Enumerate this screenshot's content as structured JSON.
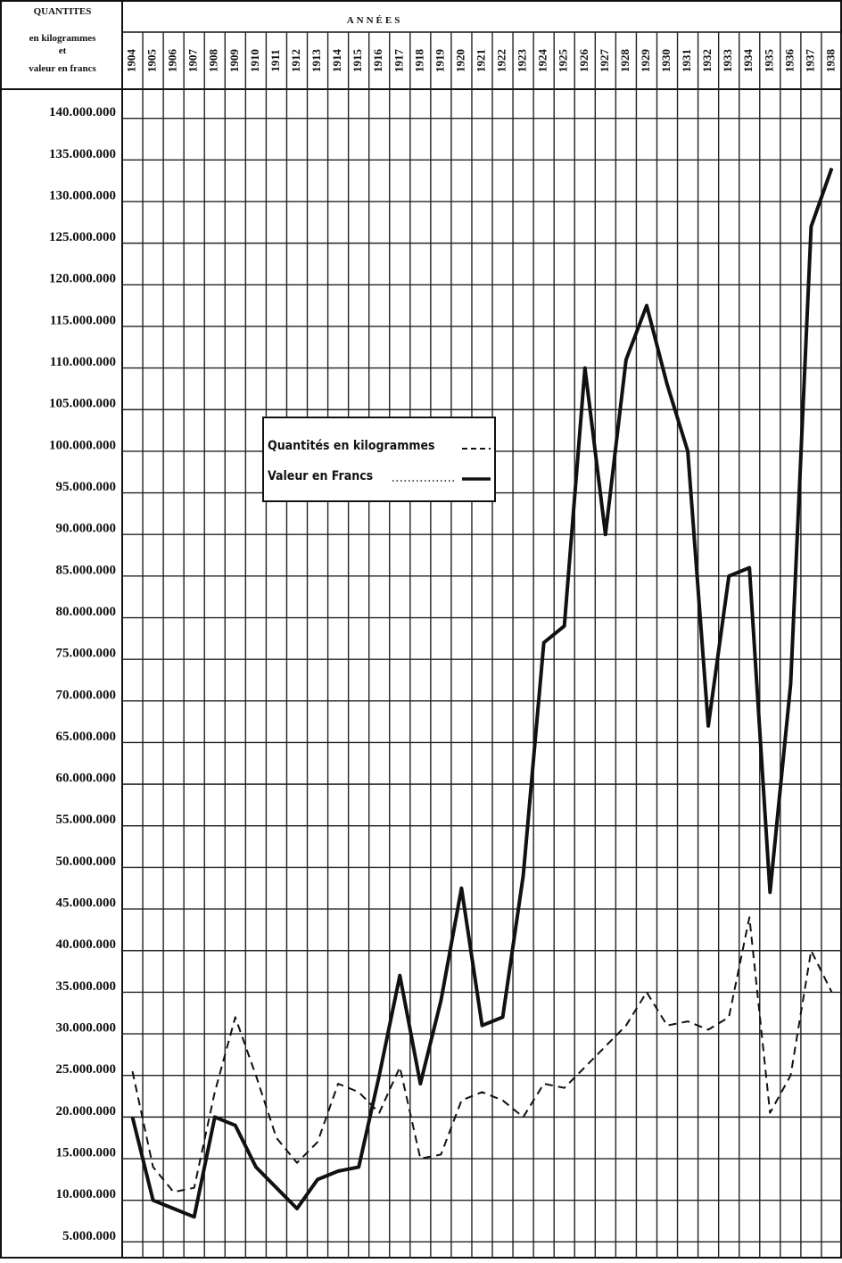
{
  "chart_data": {
    "type": "line",
    "y_label_lines": [
      "QUANTITES",
      "en kilogrammes",
      "et",
      "valeur en francs"
    ],
    "x_label": "ANNÉES",
    "categories": [
      "1904",
      "1905",
      "1906",
      "1907",
      "1908",
      "1909",
      "1910",
      "1911",
      "1912",
      "1913",
      "1914",
      "1915",
      "1916",
      "1917",
      "1918",
      "1919",
      "1920",
      "1921",
      "1922",
      "1923",
      "1924",
      "1925",
      "1926",
      "1927",
      "1928",
      "1929",
      "1930",
      "1931",
      "1932",
      "1933",
      "1934",
      "1935",
      "1936",
      "1937",
      "1938"
    ],
    "series": [
      {
        "name": "Quantités en kilogrammes",
        "color": "#111111",
        "dash": true,
        "values": [
          25.5,
          14,
          11,
          11.5,
          23,
          32,
          25,
          17.5,
          14.5,
          17,
          24,
          23,
          20.5,
          26,
          15,
          15.5,
          22,
          23,
          22,
          20,
          24,
          23.5,
          26,
          28.5,
          31,
          35,
          31,
          31.5,
          30.5,
          32,
          44,
          20.5,
          25,
          40,
          35
        ]
      },
      {
        "name": "Valeur en Francs",
        "color": "#111111",
        "dash": false,
        "values": [
          20,
          10,
          9,
          8,
          20,
          19,
          14,
          11.5,
          9,
          12.5,
          13.5,
          14,
          25,
          37,
          24,
          34,
          47.5,
          31,
          32,
          49,
          77,
          79,
          110,
          90,
          111,
          117.5,
          108,
          100,
          67,
          85,
          86,
          47,
          72,
          127,
          134
        ]
      }
    ],
    "ylim": [
      3,
      143.5
    ],
    "yticks": [
      {
        "value": 5000000,
        "label": "5.000.000"
      },
      {
        "value": 10000000,
        "label": "10.000.000"
      },
      {
        "value": 15000000,
        "label": "15.000.000"
      },
      {
        "value": 20000000,
        "label": "20.000.000"
      },
      {
        "value": 25000000,
        "label": "25.000.000"
      },
      {
        "value": 30000000,
        "label": "30.000.000"
      },
      {
        "value": 35000000,
        "label": "35.000.000"
      },
      {
        "value": 40000000,
        "label": "40.000.000"
      },
      {
        "value": 45000000,
        "label": "45.000.000"
      },
      {
        "value": 50000000,
        "label": "50.000.000"
      },
      {
        "value": 55000000,
        "label": "55.000.000"
      },
      {
        "value": 60000000,
        "label": "60.000.000"
      },
      {
        "value": 65000000,
        "label": "65.000.000"
      },
      {
        "value": 70000000,
        "label": "70.000.000"
      },
      {
        "value": 75000000,
        "label": "75.000.000"
      },
      {
        "value": 80000000,
        "label": "80.000.000"
      },
      {
        "value": 85000000,
        "label": "85.000.000"
      },
      {
        "value": 90000000,
        "label": "90.000.000"
      },
      {
        "value": 95000000,
        "label": "95.000.000"
      },
      {
        "value": 100000000,
        "label": "100.000.000"
      },
      {
        "value": 105000000,
        "label": "105.000.000"
      },
      {
        "value": 110000000,
        "label": "110.000.000"
      },
      {
        "value": 115000000,
        "label": "115.000.000"
      },
      {
        "value": 120000000,
        "label": "120.000.000"
      },
      {
        "value": 125000000,
        "label": "125.000.000"
      },
      {
        "value": 130000000,
        "label": "130.000.000"
      },
      {
        "value": 135000000,
        "label": "135.000.000"
      },
      {
        "value": 140000000,
        "label": "140.000.000"
      }
    ],
    "y_unit": 1000000,
    "grid": true
  }
}
